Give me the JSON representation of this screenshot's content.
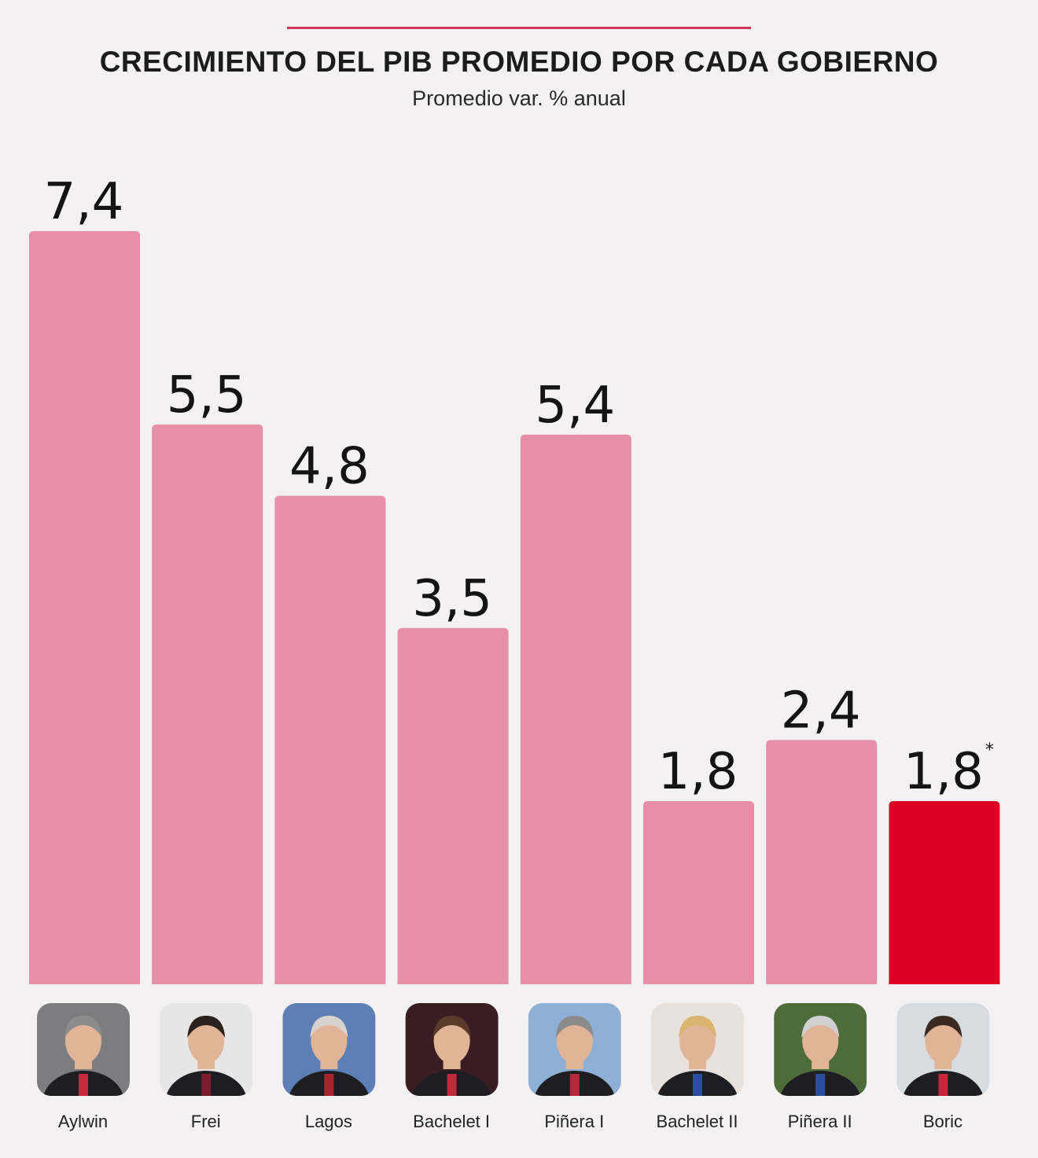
{
  "title": "CRECIMIENTO DEL PIB PROMEDIO POR CADA GOBIERNO",
  "subtitle": "Promedio var. % anual",
  "colors": {
    "bar": "#e78fa9",
    "highlight": "#dc0022",
    "rule": "#d33a5a",
    "background": "#f3f1f2"
  },
  "chart_data": {
    "type": "bar",
    "title": "CRECIMIENTO DEL PIB PROMEDIO POR CADA GOBIERNO",
    "subtitle": "Promedio var. % anual",
    "categories": [
      "Aylwin",
      "Frei",
      "Lagos",
      "Bachelet I",
      "Piñera I",
      "Bachelet II",
      "Piñera II",
      "Boric"
    ],
    "values": [
      7.4,
      5.5,
      4.8,
      3.5,
      5.4,
      1.8,
      2.4,
      1.8
    ],
    "value_labels": [
      "7,4",
      "5,5",
      "4,8",
      "3,5",
      "5,4",
      "1,8",
      "2,4",
      "1,8"
    ],
    "highlight_index": 7,
    "footnote_marks": [
      "",
      "",
      "",
      "",
      "",
      "",
      "",
      "*"
    ],
    "ylim": [
      0,
      7.4
    ],
    "xlabel": "",
    "ylabel": "",
    "grid": false,
    "legend": "none"
  },
  "avatars": [
    {
      "name": "Aylwin",
      "icon": "portrait-icon",
      "bg": "#7d7d7f",
      "hair": "#8c8c8c",
      "accent": "#c7283c"
    },
    {
      "name": "Frei",
      "icon": "portrait-icon",
      "bg": "#e6e6e6",
      "hair": "#2b211c",
      "accent": "#7a1f2b"
    },
    {
      "name": "Lagos",
      "icon": "portrait-icon",
      "bg": "#5d7fb5",
      "hair": "#d8d2cc",
      "accent": "#a52630"
    },
    {
      "name": "Bachelet I",
      "icon": "portrait-icon",
      "bg": "#3a1d22",
      "hair": "#5a3b2a",
      "accent": "#c3283a"
    },
    {
      "name": "Piñera I",
      "icon": "portrait-icon",
      "bg": "#8fb0d6",
      "hair": "#8b8b8b",
      "accent": "#b3283a"
    },
    {
      "name": "Bachelet II",
      "icon": "portrait-icon",
      "bg": "#e9e2dc",
      "hair": "#d9b56f",
      "accent": "#2b4fa0"
    },
    {
      "name": "Piñera II",
      "icon": "portrait-icon",
      "bg": "#4e6b3a",
      "hair": "#cfcfcf",
      "accent": "#2b4fa0"
    },
    {
      "name": "Boric",
      "icon": "portrait-icon",
      "bg": "#d7dbe2",
      "hair": "#3a2a22",
      "accent": "#c3283a"
    }
  ]
}
